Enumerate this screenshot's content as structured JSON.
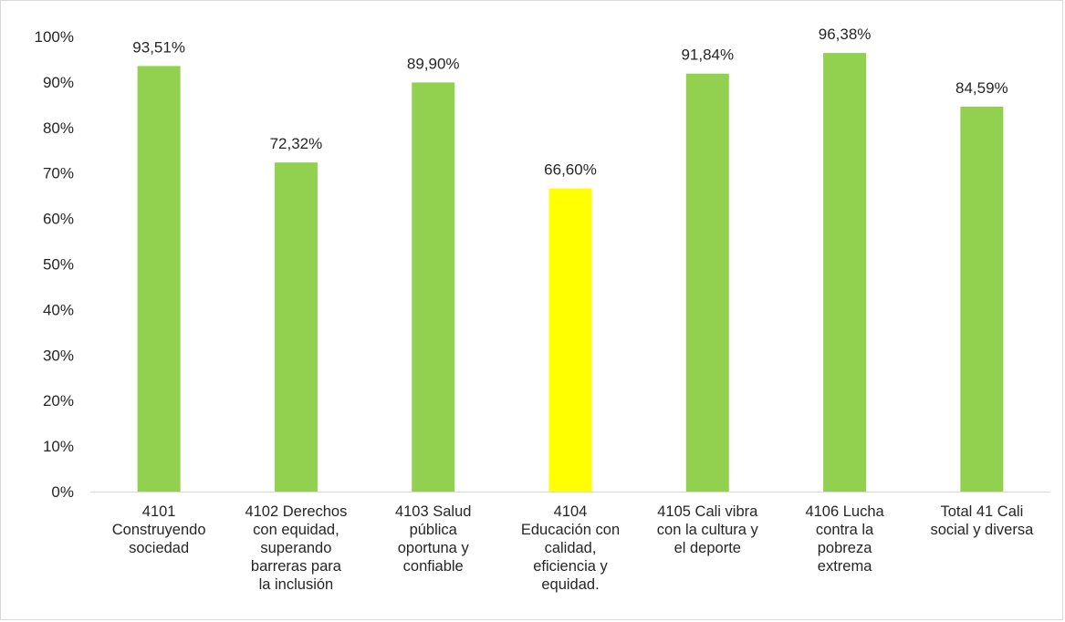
{
  "chart_data": {
    "type": "bar",
    "title": "",
    "xlabel": "",
    "ylabel": "",
    "ylim": [
      0,
      100
    ],
    "y_ticks": [
      "0%",
      "10%",
      "20%",
      "30%",
      "40%",
      "50%",
      "60%",
      "70%",
      "80%",
      "90%",
      "100%"
    ],
    "grid": false,
    "legend": "none",
    "categories": [
      "4101 Construyendo sociedad",
      "4102 Derechos con equidad, superando barreras para la inclusión",
      "4103 Salud pública oportuna y confiable",
      "4104 Educación con calidad, eficiencia y equidad.",
      "4105 Cali vibra con la cultura y el deporte",
      "4106 Lucha contra la pobreza extrema",
      "Total 41 Cali social y diversa"
    ],
    "category_lines": [
      [
        "4101",
        "Construyendo",
        "sociedad"
      ],
      [
        "4102 Derechos",
        "con equidad,",
        "superando",
        "barreras para",
        "la inclusión"
      ],
      [
        "4103 Salud",
        "pública",
        "oportuna y",
        "confiable"
      ],
      [
        "4104",
        "Educación con",
        "calidad,",
        "eficiencia y",
        "equidad."
      ],
      [
        "4105 Cali vibra",
        "con la cultura y",
        "el deporte"
      ],
      [
        "4106 Lucha",
        "contra la",
        "pobreza",
        "extrema"
      ],
      [
        "Total 41 Cali",
        "social y diversa"
      ]
    ],
    "values": [
      93.51,
      72.32,
      89.9,
      66.6,
      91.84,
      96.38,
      84.59
    ],
    "data_labels": [
      "93,51%",
      "72,32%",
      "89,90%",
      "66,60%",
      "91,84%",
      "96,38%",
      "84,59%"
    ],
    "bar_colors": [
      "#92d050",
      "#92d050",
      "#92d050",
      "#ffff00",
      "#92d050",
      "#92d050",
      "#92d050"
    ]
  }
}
